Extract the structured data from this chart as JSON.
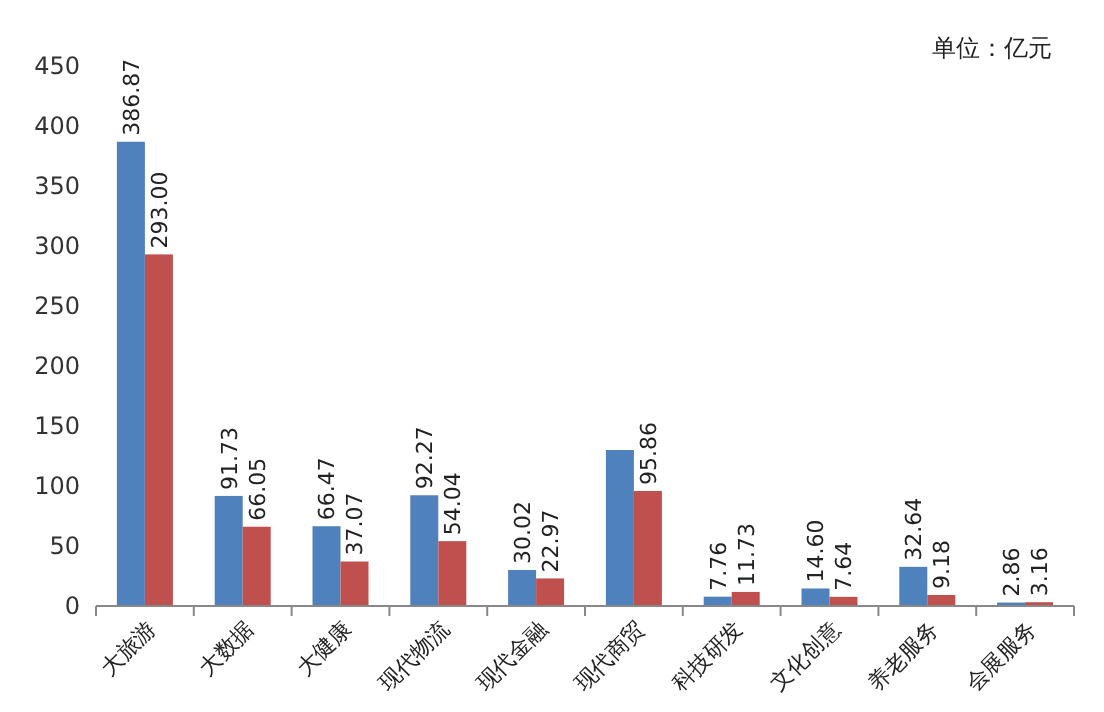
{
  "chart_data": {
    "type": "bar",
    "annotations": [
      "单位：亿元"
    ],
    "categories": [
      "大旅游",
      "大数据",
      "大健康",
      "现代物流",
      "现代金融",
      "现代商贸",
      "科技研发",
      "文化创意",
      "养老服务",
      "会展服务"
    ],
    "series": [
      {
        "color": "#4f81bd",
        "values": [
          386.87,
          91.73,
          66.47,
          92.27,
          30.02,
          130,
          7.76,
          14.6,
          32.64,
          2.86
        ],
        "value_labels": [
          "386.87",
          "91.73",
          "66.47",
          "92.27",
          "30.02",
          null,
          "7.76",
          "14.60",
          "32.64",
          "2.86"
        ]
      },
      {
        "color": "#c0504d",
        "values": [
          293.0,
          66.05,
          37.07,
          54.04,
          22.97,
          95.86,
          11.73,
          7.64,
          9.18,
          3.16
        ],
        "value_labels": [
          "293.00",
          "66.05",
          "37.07",
          "54.04",
          "22.97",
          "95.86",
          "11.73",
          "7.64",
          "9.18",
          "3.16"
        ]
      }
    ],
    "ylim": [
      0,
      450
    ],
    "yticks": [
      0,
      50,
      100,
      150,
      200,
      250,
      300,
      350,
      400,
      450
    ],
    "grid": false
  }
}
